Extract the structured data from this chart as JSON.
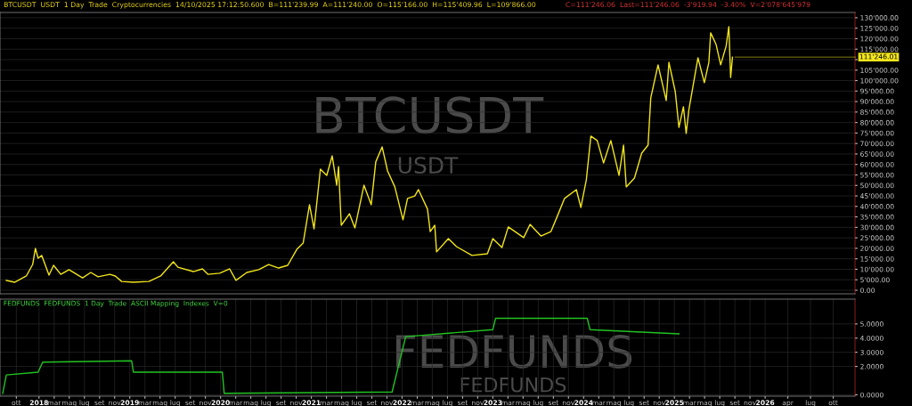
{
  "chart_data": [
    {
      "type": "line",
      "title": "BTCUSDT  USDT  1 Day  Trade  Cryptocurrencies  14/10/2025 17:12:50.600  B=111'239.99  A=111'240.00  O=115'166.00  H=115'409.96  L=109'866.00",
      "subtitle": "C=111'246.06  Last=111'246.06  -3'919.94  -3.40%  V=2'078'645'979",
      "annotations": [
        "BTCUSDT",
        "USDT",
        {
          "text": "111'246.01",
          "x": 2025.64,
          "y": 111200
        }
      ],
      "x": [
        2017.64,
        2017.73,
        2017.86,
        2017.93,
        2017.96,
        2017.99,
        2018.03,
        2018.11,
        2018.16,
        2018.24,
        2018.33,
        2018.48,
        2018.57,
        2018.65,
        2018.78,
        2018.84,
        2018.91,
        2019.04,
        2019.21,
        2019.34,
        2019.48,
        2019.53,
        2019.7,
        2019.8,
        2019.86,
        2019.99,
        2020.1,
        2020.17,
        2020.29,
        2020.42,
        2020.53,
        2020.64,
        2020.74,
        2020.84,
        2020.91,
        2020.98,
        2021.03,
        2021.1,
        2021.17,
        2021.23,
        2021.28,
        2021.3,
        2021.33,
        2021.42,
        2021.48,
        2021.58,
        2021.66,
        2021.71,
        2021.78,
        2021.84,
        2021.92,
        2022.01,
        2022.06,
        2022.14,
        2022.18,
        2022.28,
        2022.31,
        2022.36,
        2022.38,
        2022.51,
        2022.6,
        2022.77,
        2022.94,
        2023.0,
        2023.1,
        2023.17,
        2023.34,
        2023.41,
        2023.53,
        2023.64,
        2023.71,
        2023.79,
        2023.92,
        2023.97,
        2024.03,
        2024.08,
        2024.15,
        2024.22,
        2024.3,
        2024.39,
        2024.44,
        2024.47,
        2024.56,
        2024.64,
        2024.71,
        2024.74,
        2024.82,
        2024.91,
        2024.94,
        2025.01,
        2025.05,
        2025.1,
        2025.13,
        2025.16,
        2025.2,
        2025.26,
        2025.33,
        2025.38,
        2025.4,
        2025.46,
        2025.51,
        2025.57,
        2025.6,
        2025.62,
        2025.64
      ],
      "series": [
        {
          "color": "#f2e51c",
          "values": [
            4700,
            3800,
            6800,
            12300,
            20000,
            15300,
            16600,
            7200,
            11900,
            7600,
            9800,
            5900,
            8500,
            6400,
            7600,
            6800,
            4200,
            3800,
            4200,
            6800,
            13600,
            11000,
            8900,
            10200,
            7600,
            8100,
            10200,
            4700,
            8500,
            9800,
            12300,
            10600,
            11900,
            19500,
            22500,
            40800,
            29300,
            57800,
            54800,
            64100,
            50100,
            59000,
            31000,
            36500,
            29700,
            50100,
            40800,
            61200,
            68400,
            56900,
            49300,
            33600,
            43800,
            45000,
            48000,
            38700,
            28000,
            31000,
            18300,
            24600,
            20800,
            16600,
            17400,
            24600,
            20400,
            30200,
            25100,
            31400,
            25900,
            28000,
            35300,
            43800,
            48000,
            39500,
            52700,
            73500,
            71400,
            60700,
            71400,
            54800,
            69200,
            49300,
            53500,
            65400,
            69200,
            91800,
            107500,
            90500,
            108700,
            94700,
            77700,
            87500,
            74800,
            86200,
            96000,
            110900,
            99000,
            108700,
            122800,
            117200,
            107500,
            116400,
            125700,
            101500,
            111200
          ]
        }
      ],
      "xlim": [
        2017.57,
        2026.99
      ],
      "ylim": [
        -1700,
        132500
      ],
      "yticks": [
        {
          "value": 0,
          "label": "0.00"
        },
        {
          "value": 5000,
          "label": "5'000.00"
        },
        {
          "value": 10000,
          "label": "10'000.00"
        },
        {
          "value": 15000,
          "label": "15'000.00"
        },
        {
          "value": 20000,
          "label": "20'000.00"
        },
        {
          "value": 25000,
          "label": "25'000.00"
        },
        {
          "value": 30000,
          "label": "30'000.00"
        },
        {
          "value": 35000,
          "label": "35'000.00"
        },
        {
          "value": 40000,
          "label": "40'000.00"
        },
        {
          "value": 45000,
          "label": "45'000.00"
        },
        {
          "value": 50000,
          "label": "50'000.00"
        },
        {
          "value": 55000,
          "label": "55'000.00"
        },
        {
          "value": 60000,
          "label": "60'000.00"
        },
        {
          "value": 65000,
          "label": "65'000.00"
        },
        {
          "value": 70000,
          "label": "70'000.00"
        },
        {
          "value": 75000,
          "label": "75'000.00"
        },
        {
          "value": 80000,
          "label": "80'000.00"
        },
        {
          "value": 85000,
          "label": "85'000.00"
        },
        {
          "value": 90000,
          "label": "90'000.00"
        },
        {
          "value": 95000,
          "label": "95'000.00"
        },
        {
          "value": 100000,
          "label": "100'000.00"
        },
        {
          "value": 105000,
          "label": "105'000.00"
        },
        {
          "value": 110000,
          "label": null
        },
        {
          "value": 115000,
          "label": "115'000.00"
        },
        {
          "value": 120000,
          "label": "120'000.00"
        },
        {
          "value": 125000,
          "label": "125'000.00"
        },
        {
          "value": 130000,
          "label": "130'000.00"
        }
      ],
      "tick_labels": "y",
      "grid": true,
      "line_style": "solid"
    },
    {
      "type": "line",
      "title": "FEDFUNDS  FEDFUNDS  1 Day  Trade  ASCII Mapping  Indexes  V=0",
      "annotations": [
        "FEDFUNDS",
        "FEDFUNDS"
      ],
      "x": [
        2017.6,
        2017.64,
        2017.99,
        2018.04,
        2019.02,
        2019.04,
        2020.02,
        2020.04,
        2021.89,
        2022.04,
        2023.0,
        2023.03,
        2024.04,
        2024.07,
        2025.05
      ],
      "series": [
        {
          "color": "#22c322",
          "values": [
            0.1,
            1.4,
            1.6,
            2.3,
            2.4,
            1.6,
            1.6,
            0.1,
            0.2,
            4.1,
            4.6,
            5.4,
            5.4,
            4.6,
            4.3
          ]
        }
      ],
      "xlim": [
        2017.57,
        2026.99
      ],
      "ylim": [
        -0.1,
        6.75
      ],
      "yticks": [
        {
          "value": 0,
          "label": "0.0000"
        },
        {
          "value": 2,
          "label": "2.0000"
        },
        {
          "value": 3,
          "label": "3.0000"
        },
        {
          "value": 4,
          "label": "4.0000"
        },
        {
          "value": 5,
          "label": "5.0000"
        }
      ],
      "xticks": [
        {
          "value": 2017.75,
          "label": "ott"
        },
        {
          "value": 2018,
          "label": "2018"
        },
        {
          "value": 2018.167,
          "label": "mar"
        },
        {
          "value": 2018.333,
          "label": "mag"
        },
        {
          "value": 2018.5,
          "label": "lug"
        },
        {
          "value": 2018.667,
          "label": "set"
        },
        {
          "value": 2018.833,
          "label": "nov"
        },
        {
          "value": 2019,
          "label": "2019"
        },
        {
          "value": 2019.167,
          "label": "mar"
        },
        {
          "value": 2019.333,
          "label": "mag"
        },
        {
          "value": 2019.5,
          "label": "lug"
        },
        {
          "value": 2019.667,
          "label": "set"
        },
        {
          "value": 2019.833,
          "label": "nov"
        },
        {
          "value": 2020,
          "label": "2020"
        },
        {
          "value": 2020.167,
          "label": "mar"
        },
        {
          "value": 2020.333,
          "label": "mag"
        },
        {
          "value": 2020.5,
          "label": "lug"
        },
        {
          "value": 2020.667,
          "label": "set"
        },
        {
          "value": 2020.833,
          "label": "nov"
        },
        {
          "value": 2021,
          "label": "2021"
        },
        {
          "value": 2021.167,
          "label": "mar"
        },
        {
          "value": 2021.333,
          "label": "mag"
        },
        {
          "value": 2021.5,
          "label": "lug"
        },
        {
          "value": 2021.667,
          "label": "set"
        },
        {
          "value": 2021.833,
          "label": "nov"
        },
        {
          "value": 2022,
          "label": "2022"
        },
        {
          "value": 2022.167,
          "label": "mar"
        },
        {
          "value": 2022.333,
          "label": "mag"
        },
        {
          "value": 2022.5,
          "label": "lug"
        },
        {
          "value": 2022.667,
          "label": "set"
        },
        {
          "value": 2022.833,
          "label": "nov"
        },
        {
          "value": 2023,
          "label": "2023"
        },
        {
          "value": 2023.167,
          "label": "mar"
        },
        {
          "value": 2023.333,
          "label": "mag"
        },
        {
          "value": 2023.5,
          "label": "lug"
        },
        {
          "value": 2023.667,
          "label": "set"
        },
        {
          "value": 2023.833,
          "label": "nov"
        },
        {
          "value": 2024,
          "label": "2024"
        },
        {
          "value": 2024.167,
          "label": "mar"
        },
        {
          "value": 2024.333,
          "label": "mag"
        },
        {
          "value": 2024.5,
          "label": "lug"
        },
        {
          "value": 2024.667,
          "label": "set"
        },
        {
          "value": 2024.833,
          "label": "nov"
        },
        {
          "value": 2025,
          "label": "2025"
        },
        {
          "value": 2025.167,
          "label": "mar"
        },
        {
          "value": 2025.333,
          "label": "mag"
        },
        {
          "value": 2025.5,
          "label": "lug"
        },
        {
          "value": 2025.667,
          "label": "set"
        },
        {
          "value": 2025.833,
          "label": "nov"
        },
        {
          "value": 2026,
          "label": "2026"
        },
        {
          "value": 2026.25,
          "label": "apr"
        },
        {
          "value": 2026.5,
          "label": "lug"
        },
        {
          "value": 2026.75,
          "label": "ott"
        }
      ],
      "grid": true,
      "line_style": "solid"
    }
  ]
}
